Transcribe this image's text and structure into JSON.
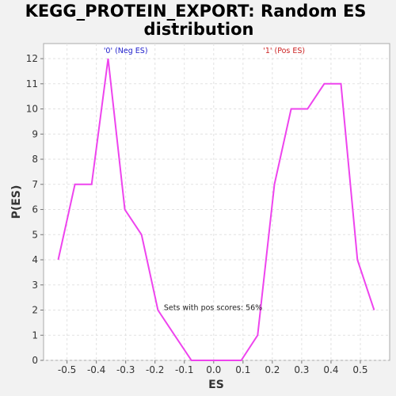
{
  "chart_data": {
    "type": "line",
    "title_line1": "KEGG_PROTEIN_EXPORT: Random ES",
    "title_line2": "distribution",
    "xlabel": "ES",
    "ylabel": "P(ES)",
    "xlim": [
      -0.58,
      0.6
    ],
    "ylim": [
      0,
      12.6
    ],
    "xticks": [
      -0.5,
      -0.4,
      -0.3,
      -0.2,
      -0.1,
      0.0,
      0.1,
      0.2,
      0.3,
      0.4,
      0.5
    ],
    "xtick_labels": [
      "-0.5",
      "-0.4",
      "-0.3",
      "-0.2",
      "-0.1",
      "0.0",
      "0.1",
      "0.2",
      "0.3",
      "0.4",
      "0.5"
    ],
    "yticks": [
      0,
      1,
      2,
      3,
      4,
      5,
      6,
      7,
      8,
      9,
      10,
      11,
      12
    ],
    "ytick_labels": [
      "0",
      "1",
      "2",
      "3",
      "4",
      "5",
      "6",
      "7",
      "8",
      "9",
      "10",
      "11",
      "12"
    ],
    "grid": true,
    "series": [
      {
        "color": "#ee44ee",
        "x": [
          -0.53,
          -0.473,
          -0.416,
          -0.36,
          -0.303,
          -0.246,
          -0.19,
          -0.133,
          -0.076,
          -0.02,
          0.037,
          0.094,
          0.15,
          0.207,
          0.264,
          0.32,
          0.377,
          0.434,
          0.49,
          0.547
        ],
        "y": [
          4,
          7,
          7,
          12,
          6,
          5,
          2,
          1,
          0,
          0,
          0,
          0,
          1,
          7,
          10,
          10,
          11,
          11,
          4,
          2
        ]
      }
    ],
    "region_labels": [
      {
        "text": "'0' (Neg ES)",
        "color": "#2222cc",
        "x": -0.3
      },
      {
        "text": "'1' (Pos ES)",
        "color": "#cc2222",
        "x": 0.24
      }
    ],
    "annotation": {
      "text": "Sets with pos scores: 56%",
      "x": -0.17,
      "y": 2
    }
  }
}
